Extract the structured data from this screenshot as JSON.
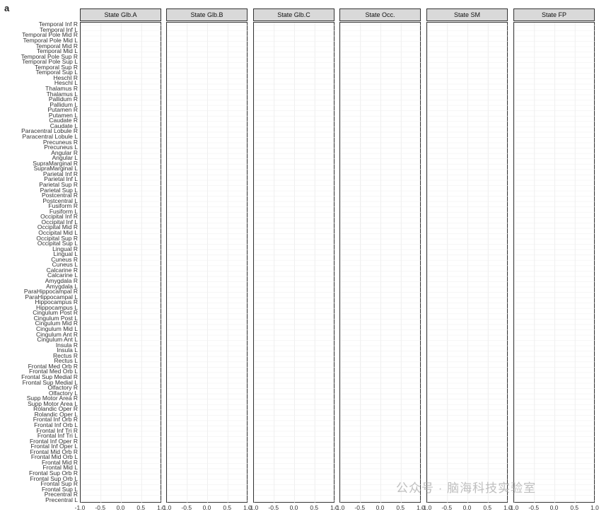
{
  "panel_label": "a",
  "chart_data": {
    "type": "bar",
    "orientation": "horizontal",
    "xlim": [
      -1.0,
      1.0
    ],
    "xticks": [
      "-1.0",
      "-0.5",
      "0.0",
      "0.5",
      "1.0"
    ],
    "facets": [
      "State Glb.A",
      "State Glb.B",
      "State Glb.C",
      "State Occ.",
      "State SM",
      "State FP"
    ],
    "regions": [
      "Temporal Inf R",
      "Temporal Inf L",
      "Temporal Pole Mid R",
      "Temporal Pole Mid L",
      "Temporal Mid R",
      "Temporal Mid L",
      "Temporal Pole Sup R",
      "Temporal Pole Sup L",
      "Temporal Sup R",
      "Temporal Sup L",
      "Heschl R",
      "Heschl L",
      "Thalamus R",
      "Thalamus L",
      "Pallidum R",
      "Pallidum L",
      "Putamen R",
      "Putamen L",
      "Caudate R",
      "Caudate L",
      "Paracentral Lobule R",
      "Paracentral Lobule L",
      "Precuneus R",
      "Precuneus L",
      "Angular R",
      "Angular L",
      "SupraMarginal R",
      "SupraMarginal L",
      "Parietal Inf R",
      "Parietal Inf L",
      "Parietal Sup R",
      "Parietal Sup L",
      "Postcentral R",
      "Postcentral L",
      "Fusiform R",
      "Fusiform L",
      "Occipital Inf R",
      "Occipital Inf L",
      "Occipital Mid R",
      "Occipital Mid L",
      "Occipital Sup R",
      "Occipital Sup L",
      "Lingual R",
      "Lingual L",
      "Cuneus R",
      "Cuneus L",
      "Calcarine R",
      "Calcarine L",
      "Amygdala R",
      "Amygdala L",
      "ParaHippocampal R",
      "ParaHippocampal L",
      "Hippocampus R",
      "Hippocampus L",
      "Cingulum Post R",
      "Cingulum Post L",
      "Cingulum Mid R",
      "Cingulum Mid L",
      "Cingulum Ant R",
      "Cingulum Ant L",
      "Insula R",
      "Insula L",
      "Rectus R",
      "Rectus L",
      "Frontal Med Orb R",
      "Frontal Med Orb L",
      "Frontal Sup Medial R",
      "Frontal Sup Medial L",
      "Olfactory R",
      "Olfactory L",
      "Supp Motor Area R",
      "Supp Motor Area L",
      "Rolandic Oper R",
      "Rolandic Oper L",
      "Frontal Inf Orb R",
      "Frontal Inf Orb L",
      "Frontal Inf Tri R",
      "Frontal Inf Tri L",
      "Frontal Inf Oper R",
      "Frontal Inf Oper L",
      "Frontal Mid Orb R",
      "Frontal Mid Orb L",
      "Frontal Mid R",
      "Frontal Mid L",
      "Frontal Sup Orb R",
      "Frontal Sup Orb L",
      "Frontal Sup R",
      "Frontal Sup L",
      "Precentral R",
      "Precentral L"
    ],
    "colors": {
      "negative_dark": "#3b1a5a",
      "negative_light": "#e6e0ee",
      "positive_light": "#f3d0c6",
      "positive_dark": "#c86e5a"
    }
  },
  "watermark": "公众号 · 脑海科技实验室"
}
